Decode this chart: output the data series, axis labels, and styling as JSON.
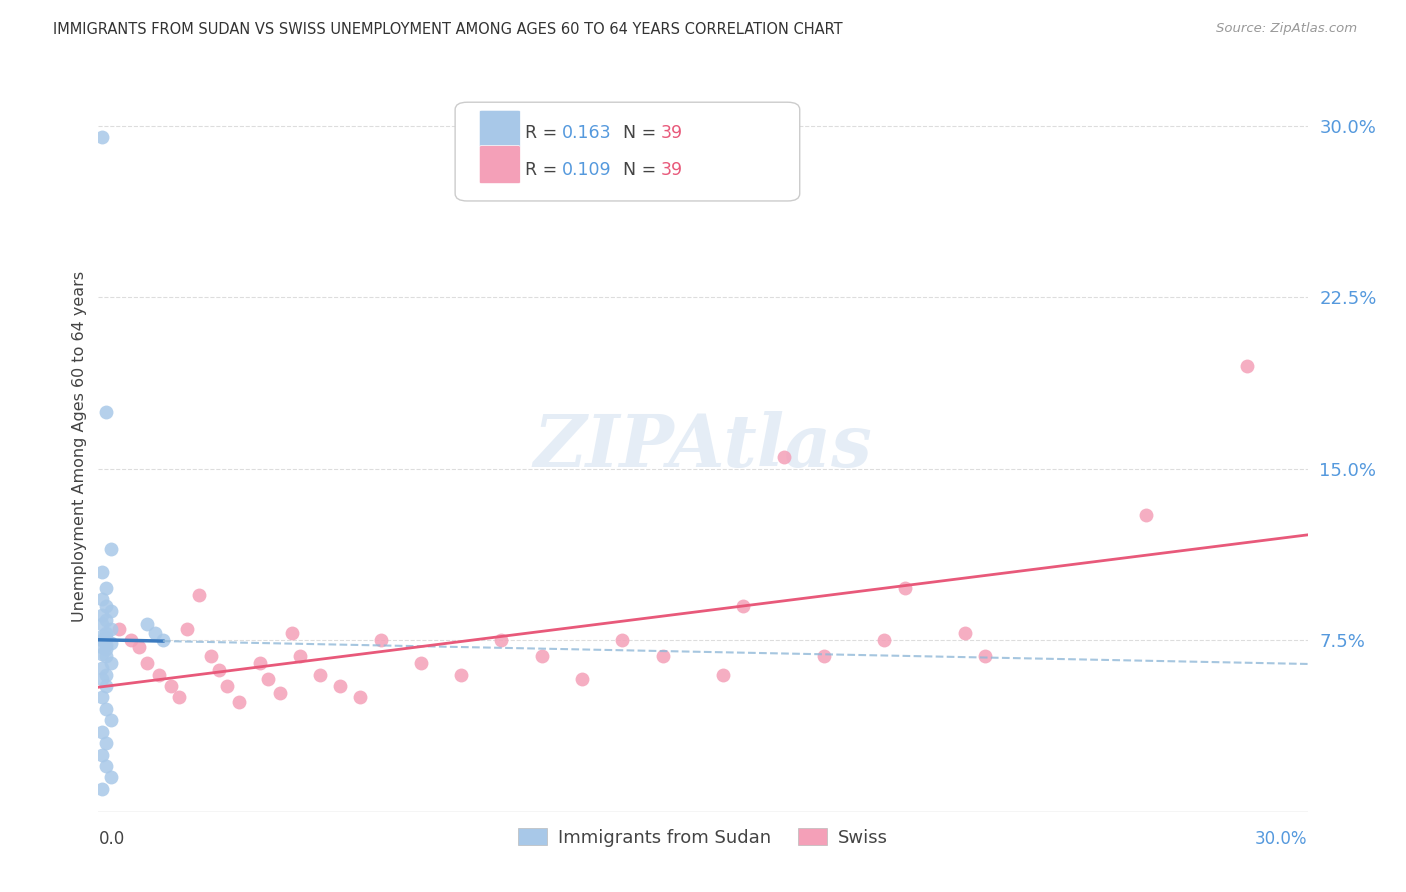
{
  "title": "IMMIGRANTS FROM SUDAN VS SWISS UNEMPLOYMENT AMONG AGES 60 TO 64 YEARS CORRELATION CHART",
  "source": "Source: ZipAtlas.com",
  "ylabel": "Unemployment Among Ages 60 to 64 years",
  "yticks_labels": [
    "7.5%",
    "15.0%",
    "22.5%",
    "30.0%"
  ],
  "ytick_vals": [
    0.075,
    0.15,
    0.225,
    0.3
  ],
  "xrange": [
    0.0,
    0.3
  ],
  "yrange": [
    0.0,
    0.32
  ],
  "legend1_R": "0.163",
  "legend1_N": "39",
  "legend2_R": "0.109",
  "legend2_N": "39",
  "color_blue": "#a8c8e8",
  "color_pink": "#f4a0b8",
  "color_blue_line": "#3a7abf",
  "color_pink_line": "#e8597a",
  "color_blue_dash": "#90b8d8",
  "grid_color": "#dddddd",
  "background_color": "#ffffff",
  "sudan_x": [
    0.001,
    0.002,
    0.003,
    0.001,
    0.002,
    0.001,
    0.002,
    0.003,
    0.001,
    0.002,
    0.001,
    0.003,
    0.002,
    0.001,
    0.002,
    0.001,
    0.003,
    0.002,
    0.001,
    0.002,
    0.001,
    0.002,
    0.003,
    0.001,
    0.002,
    0.001,
    0.002,
    0.001,
    0.002,
    0.003,
    0.001,
    0.002,
    0.001,
    0.002,
    0.003,
    0.001,
    0.012,
    0.014,
    0.016
  ],
  "sudan_y": [
    0.295,
    0.175,
    0.115,
    0.105,
    0.098,
    0.093,
    0.09,
    0.088,
    0.086,
    0.084,
    0.082,
    0.08,
    0.078,
    0.077,
    0.076,
    0.075,
    0.074,
    0.073,
    0.072,
    0.071,
    0.069,
    0.068,
    0.065,
    0.063,
    0.06,
    0.058,
    0.055,
    0.05,
    0.045,
    0.04,
    0.035,
    0.03,
    0.025,
    0.02,
    0.015,
    0.01,
    0.082,
    0.078,
    0.075
  ],
  "swiss_x": [
    0.005,
    0.008,
    0.01,
    0.012,
    0.015,
    0.018,
    0.02,
    0.022,
    0.025,
    0.028,
    0.03,
    0.032,
    0.035,
    0.04,
    0.042,
    0.045,
    0.048,
    0.05,
    0.055,
    0.06,
    0.065,
    0.07,
    0.08,
    0.09,
    0.1,
    0.11,
    0.12,
    0.13,
    0.14,
    0.155,
    0.16,
    0.17,
    0.18,
    0.195,
    0.2,
    0.215,
    0.22,
    0.26,
    0.285
  ],
  "swiss_y": [
    0.08,
    0.075,
    0.072,
    0.065,
    0.06,
    0.055,
    0.05,
    0.08,
    0.095,
    0.068,
    0.062,
    0.055,
    0.048,
    0.065,
    0.058,
    0.052,
    0.078,
    0.068,
    0.06,
    0.055,
    0.05,
    0.075,
    0.065,
    0.06,
    0.075,
    0.068,
    0.058,
    0.075,
    0.068,
    0.06,
    0.09,
    0.155,
    0.068,
    0.075,
    0.098,
    0.078,
    0.068,
    0.13,
    0.195
  ],
  "watermark_text": "ZIPAtlas",
  "watermark_color": "#d0dff0",
  "bottom_legend_labels": [
    "Immigrants from Sudan",
    "Swiss"
  ]
}
